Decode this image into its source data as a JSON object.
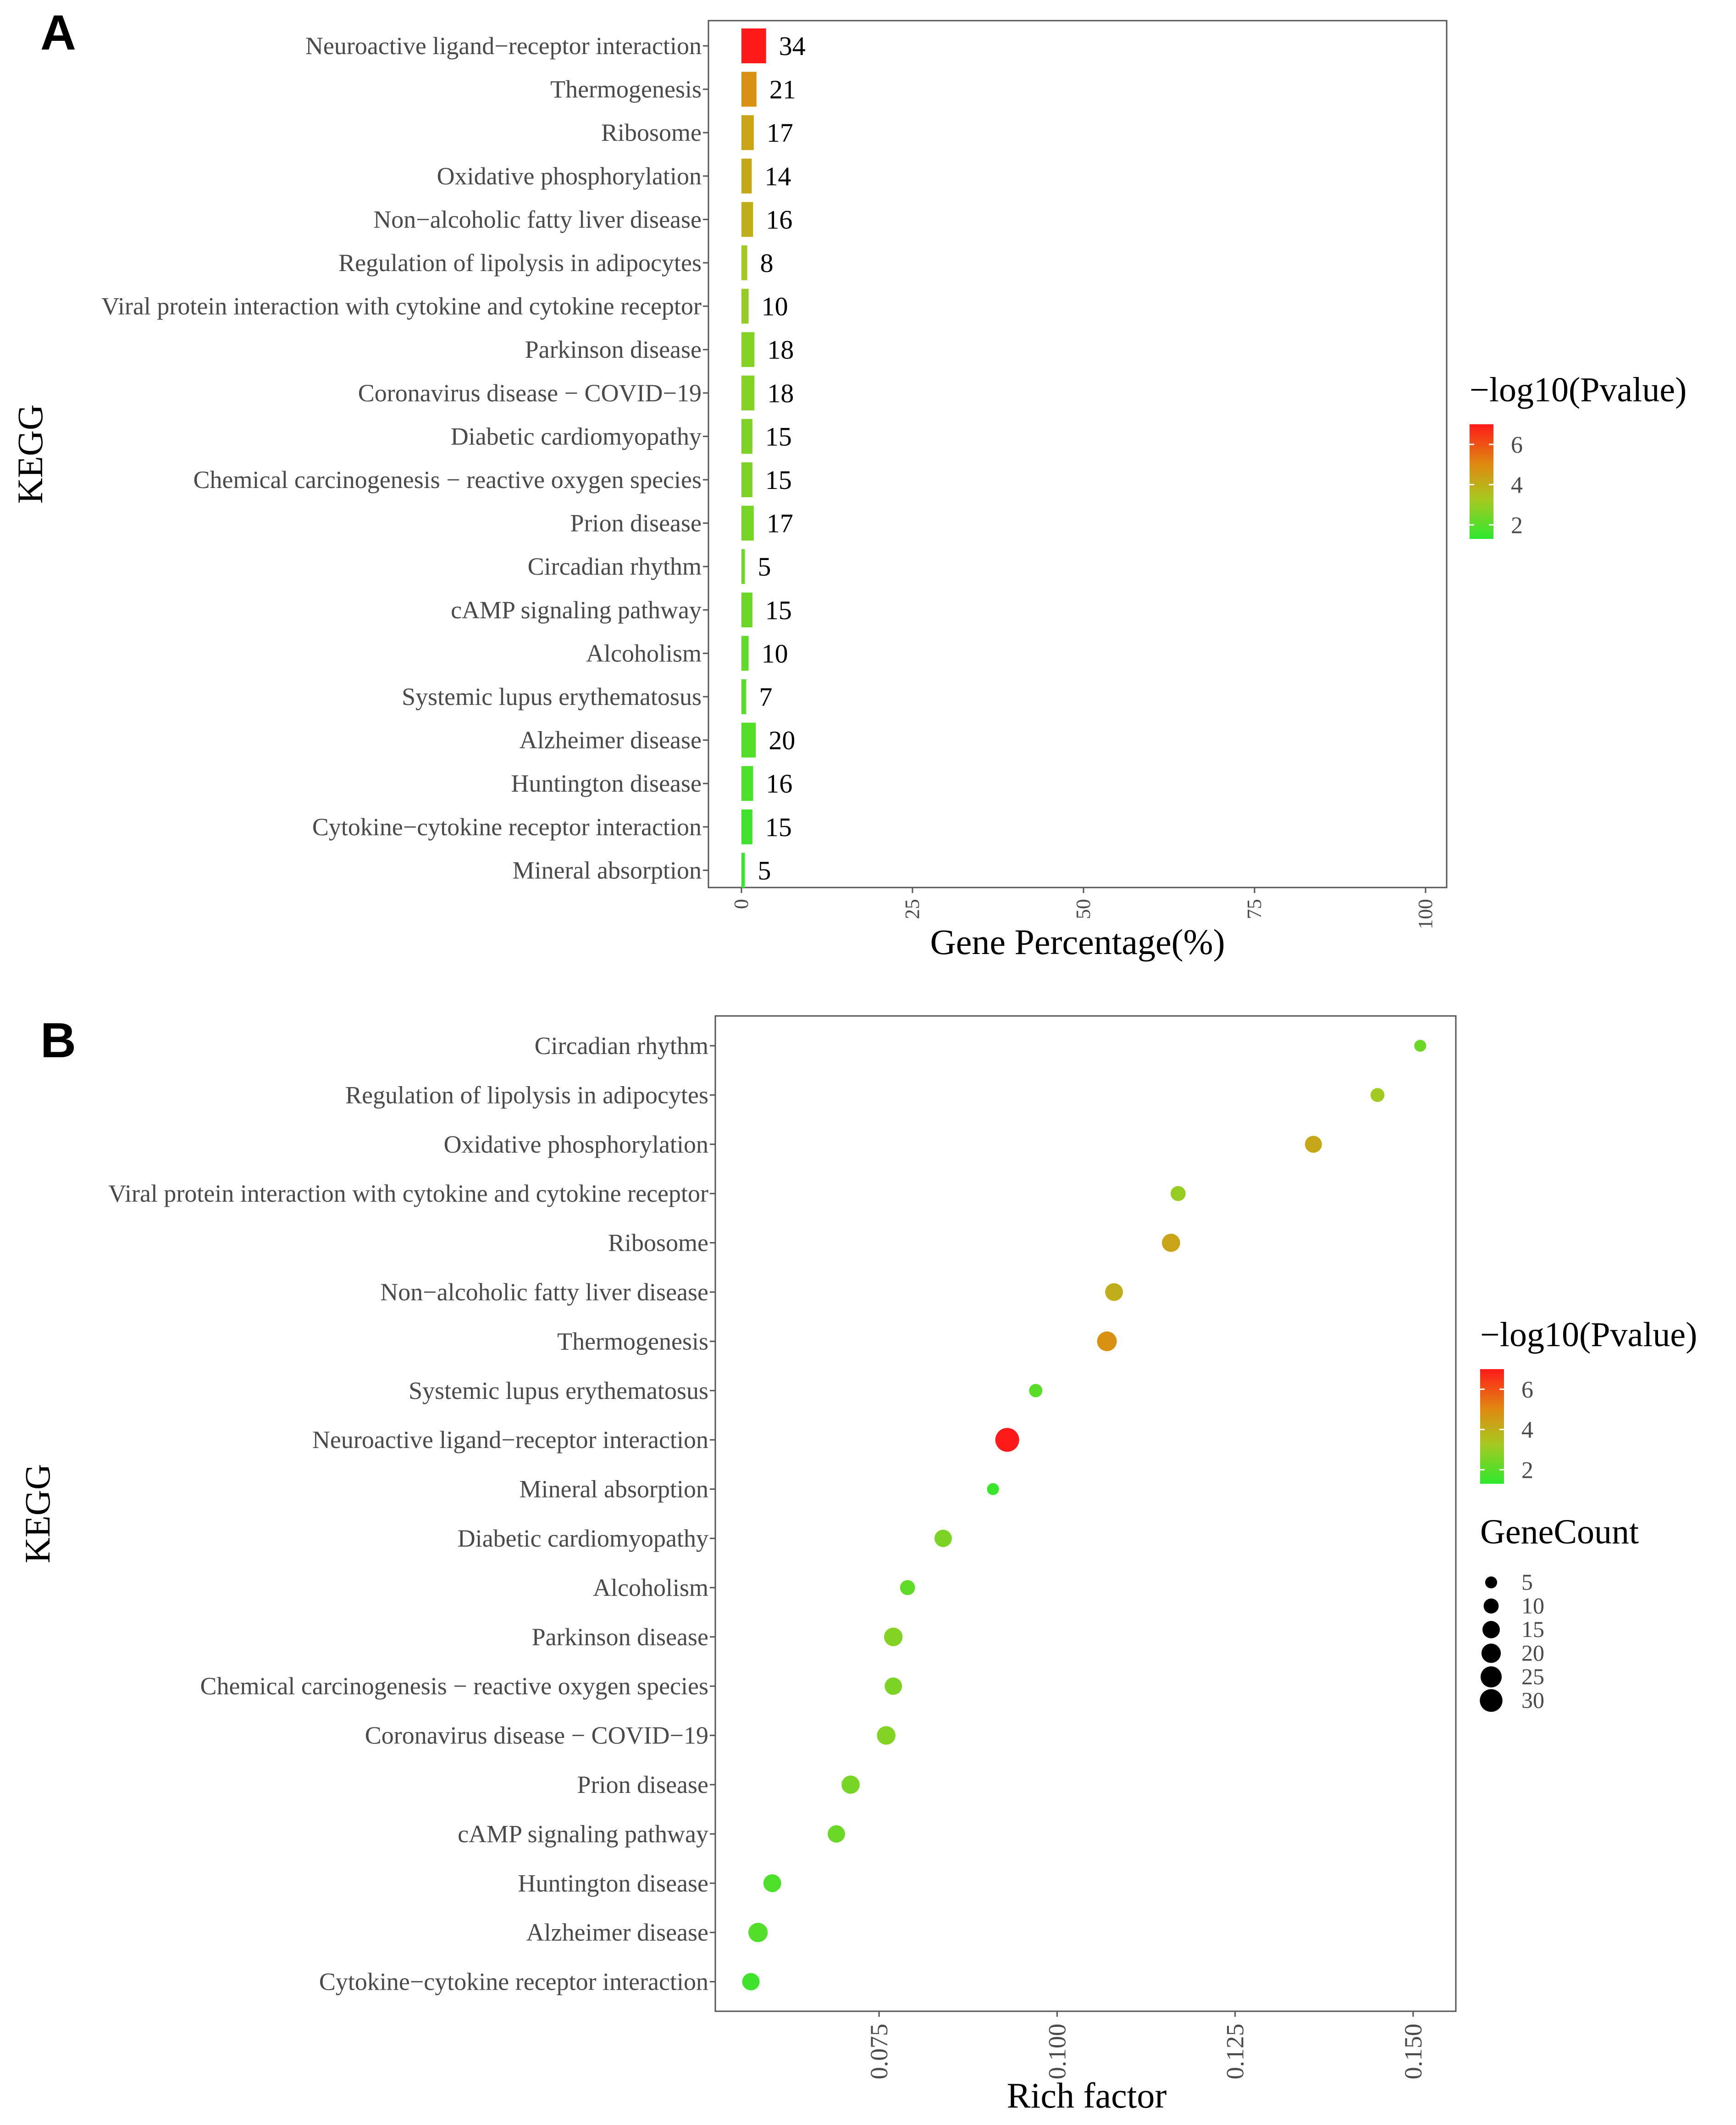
{
  "panels": {
    "a": {
      "letter": "A"
    },
    "b": {
      "letter": "B"
    }
  },
  "colors": {
    "low": "#2ee82e",
    "mid": "#a8c820",
    "high": "#ff1a1a",
    "axis": "#666666",
    "text": "#4a4a4a"
  },
  "chart_data": [
    {
      "type": "bar",
      "orientation": "horizontal",
      "title": "",
      "xlabel": "Gene Percentage(%)",
      "ylabel": "KEGG",
      "xlim": [
        0,
        100
      ],
      "xticks": [
        "0",
        "25",
        "50",
        "75",
        "100"
      ],
      "legend_title": "−log10(Pvalue)",
      "legend_ticks": [
        "6",
        "4",
        "2"
      ],
      "legend_range": [
        1.3,
        7.0
      ],
      "categories": [
        "Neuroactive ligand−receptor interaction",
        "Thermogenesis",
        "Ribosome",
        "Oxidative phosphorylation",
        "Non−alcoholic fatty liver disease",
        "Regulation of lipolysis in adipocytes",
        "Viral protein interaction with cytokine and cytokine receptor",
        "Parkinson disease",
        "Coronavirus disease − COVID−19",
        "Diabetic cardiomyopathy",
        "Chemical carcinogenesis − reactive oxygen species",
        "Prion disease",
        "Circadian rhythm",
        "cAMP signaling pathway",
        "Alcoholism",
        "Systemic lupus erythematosus",
        "Alzheimer disease",
        "Huntington disease",
        "Cytokine−cytokine receptor interaction",
        "Mineral absorption"
      ],
      "values": [
        3.6,
        2.2,
        1.8,
        1.5,
        1.7,
        0.85,
        1.05,
        1.9,
        1.9,
        1.6,
        1.6,
        1.8,
        0.5,
        1.6,
        1.05,
        0.7,
        2.1,
        1.7,
        1.6,
        0.5
      ],
      "labels": [
        "34",
        "21",
        "17",
        "14",
        "16",
        "8",
        "10",
        "18",
        "18",
        "15",
        "15",
        "17",
        "5",
        "15",
        "10",
        "7",
        "20",
        "16",
        "15",
        "5"
      ],
      "neglog10p": [
        7.0,
        4.8,
        4.3,
        4.2,
        4.0,
        3.2,
        3.0,
        2.7,
        2.7,
        2.6,
        2.6,
        2.5,
        2.3,
        2.3,
        2.1,
        2.0,
        1.9,
        1.8,
        1.6,
        1.5
      ]
    },
    {
      "type": "scatter",
      "title": "",
      "xlabel": "Rich factor",
      "ylabel": "KEGG",
      "xlim": [
        0.052,
        0.156
      ],
      "xticks": [
        0.075,
        0.1,
        0.125,
        0.15
      ],
      "xtick_labels": [
        "0.075",
        "0.100",
        "0.125",
        "0.150"
      ],
      "legend_title": "−log10(Pvalue)",
      "legend_ticks": [
        "6",
        "4",
        "2"
      ],
      "legend_range": [
        1.3,
        7.0
      ],
      "size_legend_title": "GeneCount",
      "size_legend_values": [
        5,
        10,
        15,
        20,
        25,
        30
      ],
      "size_legend_labels": [
        "5",
        "10",
        "15",
        "20",
        "25",
        "30"
      ],
      "categories": [
        "Circadian rhythm",
        "Regulation of lipolysis in adipocytes",
        "Oxidative phosphorylation",
        "Viral protein interaction with cytokine and cytokine receptor",
        "Ribosome",
        "Non−alcoholic fatty liver disease",
        "Thermogenesis",
        "Systemic lupus erythematosus",
        "Neuroactive ligand−receptor interaction",
        "Mineral absorption",
        "Diabetic cardiomyopathy",
        "Alcoholism",
        "Parkinson disease",
        "Chemical carcinogenesis − reactive oxygen species",
        "Coronavirus disease − COVID−19",
        "Prion disease",
        "cAMP signaling pathway",
        "Huntington disease",
        "Alzheimer disease",
        "Cytokine−cytokine receptor interaction"
      ],
      "rich_factor": [
        0.151,
        0.145,
        0.136,
        0.117,
        0.116,
        0.108,
        0.107,
        0.097,
        0.093,
        0.091,
        0.084,
        0.079,
        0.077,
        0.077,
        0.076,
        0.071,
        0.069,
        0.06,
        0.058,
        0.057
      ],
      "gene_count": [
        5,
        8,
        14,
        10,
        17,
        16,
        21,
        7,
        34,
        5,
        15,
        10,
        18,
        15,
        18,
        17,
        15,
        16,
        20,
        15
      ],
      "neglog10p": [
        2.3,
        3.2,
        4.2,
        3.0,
        4.3,
        4.0,
        4.8,
        2.0,
        7.0,
        1.5,
        2.6,
        2.1,
        2.7,
        2.6,
        2.7,
        2.5,
        2.3,
        1.8,
        1.9,
        1.6
      ]
    }
  ]
}
